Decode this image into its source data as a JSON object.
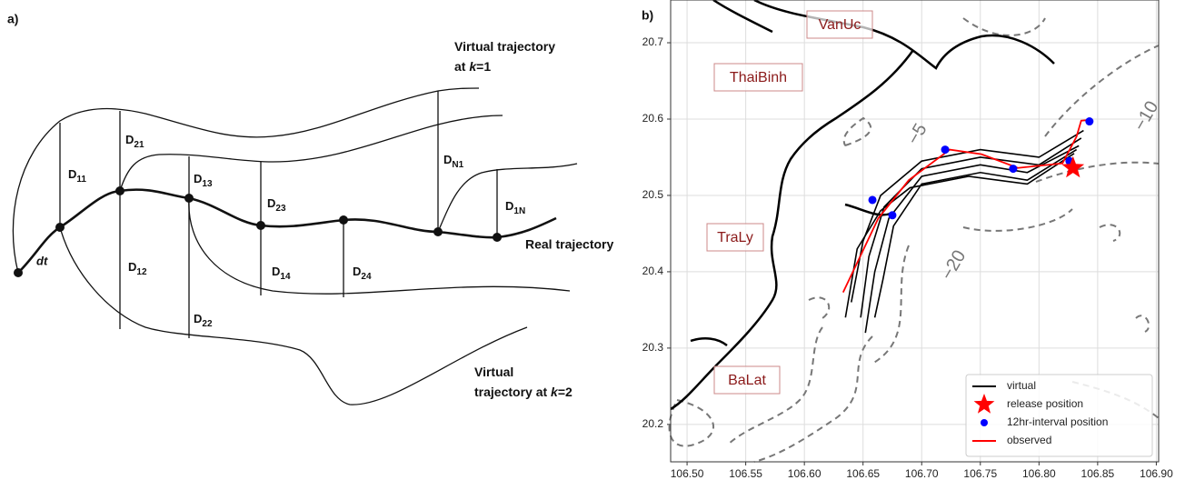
{
  "panel_a": {
    "label": "a)",
    "virtual_k1": {
      "line1": "Virtual trajectory",
      "prefix": "at ",
      "k": "k",
      "suffix": "=1"
    },
    "virtual_k2": {
      "line1": "Virtual",
      "prefix": "trajectory at ",
      "k": "k",
      "suffix": "=2"
    },
    "real_trajectory": "Real trajectory",
    "dt": "dt",
    "segments": [
      {
        "base": "D",
        "sub": "11"
      },
      {
        "base": "D",
        "sub": "21"
      },
      {
        "base": "D",
        "sub": "13"
      },
      {
        "base": "D",
        "sub": "23"
      },
      {
        "base": "D",
        "sub": "12"
      },
      {
        "base": "D",
        "sub": "14"
      },
      {
        "base": "D",
        "sub": "24"
      },
      {
        "base": "D",
        "sub": "22"
      },
      {
        "base": "D",
        "sub": "N1"
      },
      {
        "base": "D",
        "sub": "1N"
      }
    ]
  },
  "panel_b_label": "b)",
  "chart_data": {
    "type": "map",
    "places": [
      "VanUc",
      "ThaiBinh",
      "TraLy",
      "BaLat"
    ],
    "contour_labels": [
      "−5",
      "−10",
      "−20"
    ],
    "xlim": [
      106.486,
      106.902
    ],
    "ylim": [
      20.151,
      20.756
    ],
    "grid": true,
    "xticks": [
      {
        "value": 106.5,
        "label": "106.50"
      },
      {
        "value": 106.55,
        "label": "106.55"
      },
      {
        "value": 106.6,
        "label": "106.60"
      },
      {
        "value": 106.65,
        "label": "106.65"
      },
      {
        "value": 106.7,
        "label": "106.70"
      },
      {
        "value": 106.75,
        "label": "106.75"
      },
      {
        "value": 106.8,
        "label": "106.80"
      },
      {
        "value": 106.85,
        "label": "106.85"
      },
      {
        "value": 106.9,
        "label": "106.90"
      }
    ],
    "yticks": [
      20.2,
      20.3,
      20.4,
      20.5,
      20.6,
      20.7
    ],
    "series": [
      {
        "name": "virtual",
        "color": "#000000",
        "kind": "tracks",
        "tracks": [
          {
            "x": [
              106.838,
              106.8,
              106.75,
              106.7,
              106.665,
              106.65,
              106.64
            ],
            "y": [
              20.585,
              20.55,
              20.56,
              20.545,
              20.5,
              20.44,
              20.36
            ]
          },
          {
            "x": [
              106.836,
              106.8,
              106.75,
              106.7,
              106.668,
              106.655,
              106.648
            ],
            "y": [
              20.575,
              20.54,
              20.55,
              20.535,
              20.485,
              20.42,
              20.34
            ]
          },
          {
            "x": [
              106.834,
              106.79,
              106.75,
              106.7,
              106.672,
              106.66,
              106.652
            ],
            "y": [
              20.565,
              20.53,
              20.54,
              20.525,
              20.47,
              20.4,
              20.32
            ]
          },
          {
            "x": [
              106.832,
              106.79,
              106.75,
              106.7,
              106.676,
              106.667,
              106.66
            ],
            "y": [
              20.56,
              20.52,
              20.53,
              20.515,
              20.46,
              20.39,
              20.34
            ]
          },
          {
            "x": [
              106.83,
              106.79,
              106.74,
              106.69,
              106.665,
              106.645,
              106.635
            ],
            "y": [
              20.555,
              20.515,
              20.525,
              20.51,
              20.48,
              20.43,
              20.34
            ]
          }
        ]
      },
      {
        "name": "release position",
        "color": "#ff0000",
        "kind": "star",
        "x": [
          106.829
        ],
        "y": [
          20.536
        ]
      },
      {
        "name": "12hr-interval position",
        "color": "#0000ff",
        "kind": "scatter",
        "x": [
          106.658,
          106.675,
          106.72,
          106.778,
          106.843,
          106.826
        ],
        "y": [
          20.494,
          20.474,
          20.56,
          20.535,
          20.597,
          20.545
        ]
      },
      {
        "name": "observed",
        "color": "#ff0000",
        "kind": "line",
        "x": [
          106.633,
          106.663,
          106.689,
          106.724,
          106.751,
          106.782,
          106.82,
          106.832,
          106.836,
          106.844
        ],
        "y": [
          20.373,
          20.47,
          20.52,
          20.56,
          20.554,
          20.536,
          20.542,
          20.577,
          20.598,
          20.599
        ]
      }
    ],
    "legend": "lower right"
  }
}
